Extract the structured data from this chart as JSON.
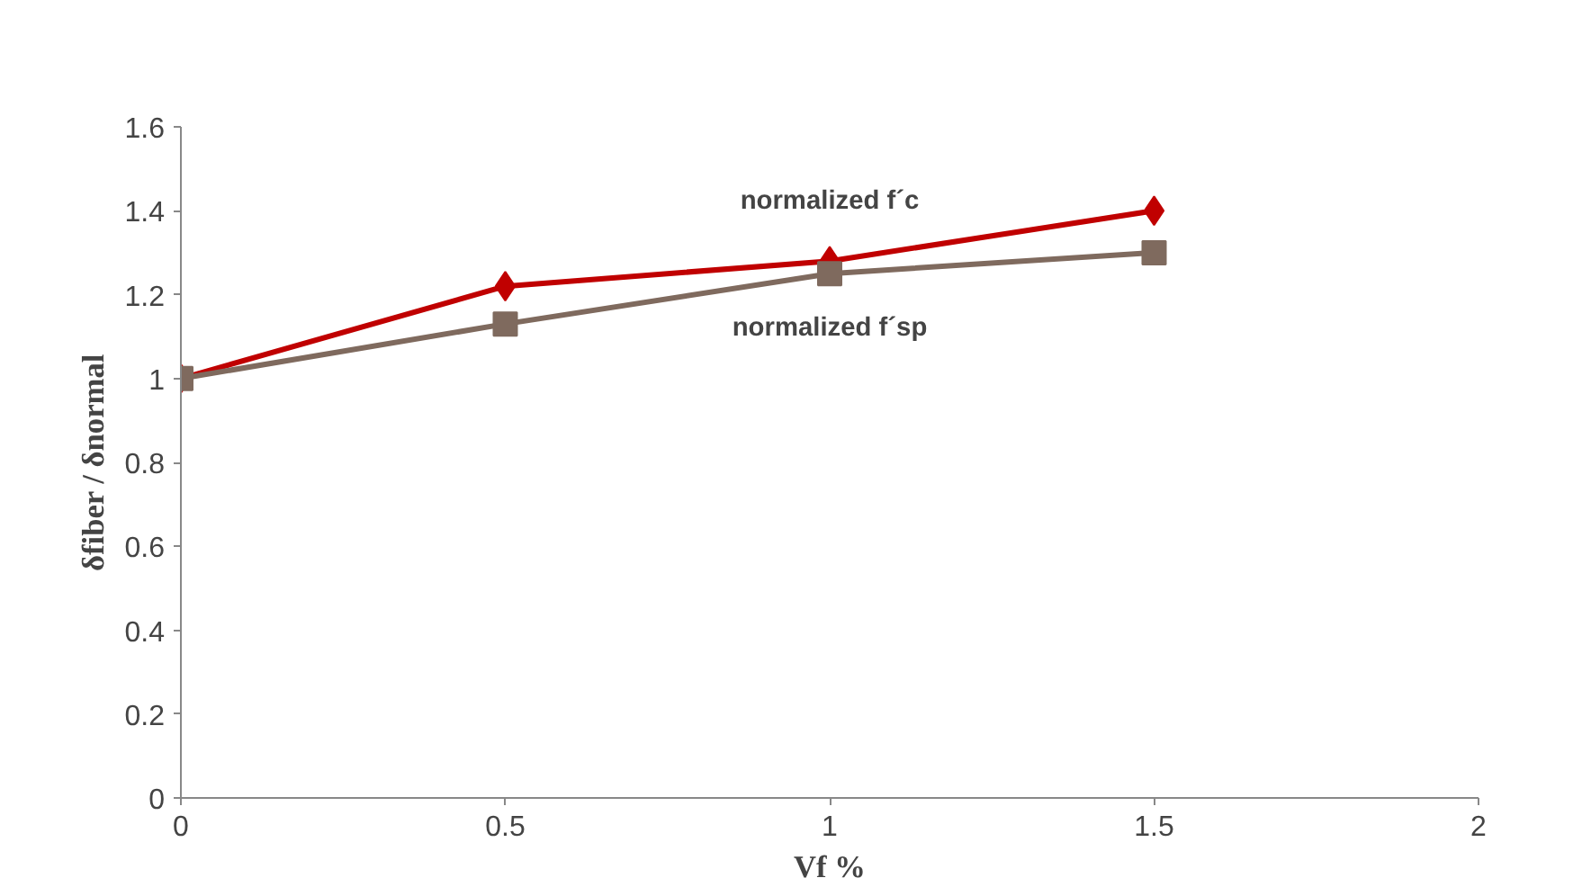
{
  "chart_data": {
    "type": "line",
    "xlabel": "Vf %",
    "ylabel": "δfiber / δnormal",
    "x": [
      0,
      0.5,
      1,
      1.5
    ],
    "series": [
      {
        "name": "normalized f´c",
        "color": "#c00000",
        "marker": "diamond",
        "values": [
          1,
          1.22,
          1.28,
          1.4
        ]
      },
      {
        "name": "normalized f´sp",
        "color": "#7f6a5e",
        "marker": "square",
        "values": [
          1,
          1.13,
          1.25,
          1.3
        ]
      }
    ],
    "xlim": [
      0,
      2
    ],
    "xticks": [
      0,
      0.5,
      1,
      1.5,
      2
    ],
    "ylim": [
      0,
      1.6
    ],
    "yticks": [
      0,
      0.2,
      0.4,
      0.6,
      0.8,
      1,
      1.2,
      1.4,
      1.6
    ],
    "grid": false
  }
}
